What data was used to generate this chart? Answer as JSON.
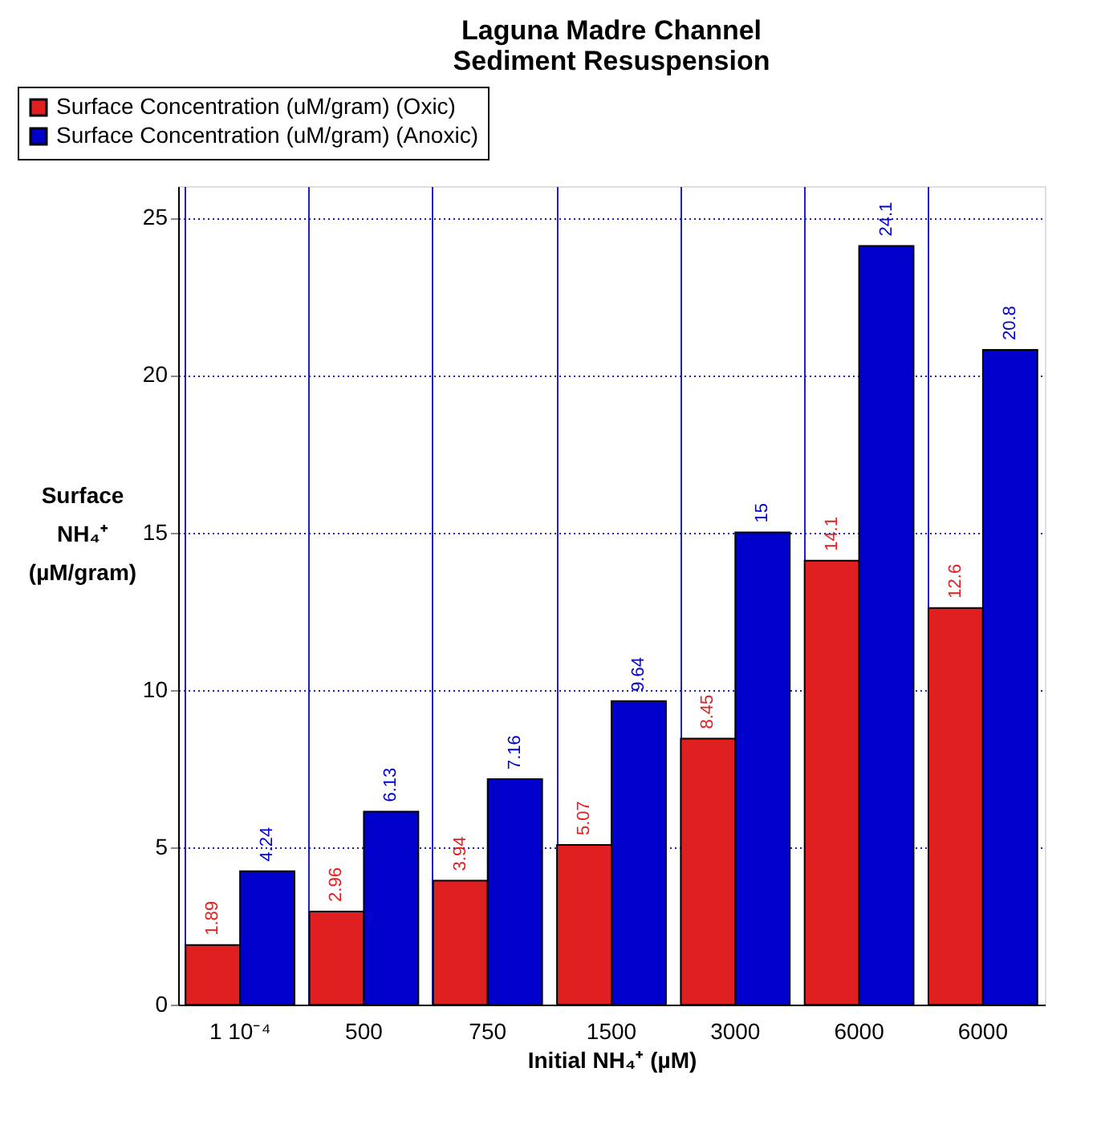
{
  "chart_data": {
    "type": "bar",
    "title": "Laguna Madre Channel\nSediment Resuspension",
    "categories": [
      "1 10⁻⁴",
      "500",
      "750",
      "1500",
      "3000",
      "6000",
      "6000"
    ],
    "series": [
      {
        "name": "Surface Concentration (uM/gram) (Oxic)",
        "color": "#e02020",
        "values": [
          1.89,
          2.96,
          3.94,
          5.07,
          8.45,
          14.1,
          12.6
        ]
      },
      {
        "name": "Surface Concentration (uM/gram) (Anoxic)",
        "color": "#0000cc",
        "values": [
          4.24,
          6.13,
          7.16,
          9.64,
          15,
          24.1,
          20.8
        ]
      }
    ],
    "xlabel": "Initial NH₄⁺ (µM)",
    "ylabel": "Surface NH₄⁺ (µM/gram)",
    "ylim": [
      0,
      26
    ],
    "yticks": [
      0,
      5,
      10,
      15,
      20,
      25
    ],
    "grid": true,
    "legend": "top left",
    "data_labels": true
  }
}
